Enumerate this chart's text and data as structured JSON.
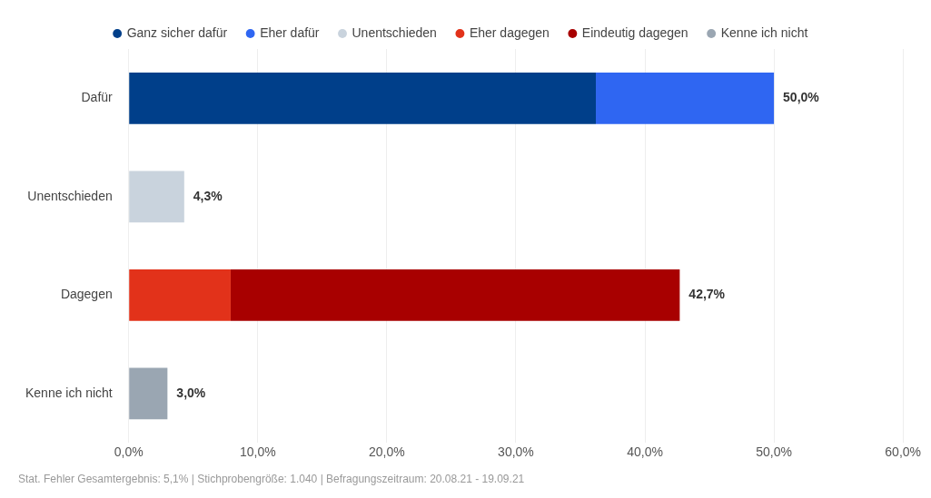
{
  "chart_data": {
    "type": "bar",
    "orientation": "horizontal",
    "stacked": true,
    "categories": [
      "Dafür",
      "Unentschieden",
      "Dagegen",
      "Kenne ich nicht"
    ],
    "series": [
      {
        "name": "Ganz sicher dafür",
        "color": "#003f8a",
        "values": [
          36.2,
          null,
          null,
          null
        ]
      },
      {
        "name": "Eher dafür",
        "color": "#2f66f2",
        "values": [
          13.8,
          null,
          null,
          null
        ]
      },
      {
        "name": "Unentschieden",
        "color": "#c9d3dd",
        "values": [
          null,
          4.3,
          null,
          null
        ]
      },
      {
        "name": "Eher dagegen",
        "color": "#e2321a",
        "values": [
          null,
          null,
          7.9,
          null
        ]
      },
      {
        "name": "Eindeutig dagegen",
        "color": "#a80000",
        "values": [
          null,
          null,
          34.8,
          null
        ]
      },
      {
        "name": "Kenne ich nicht",
        "color": "#9aa6b2",
        "values": [
          null,
          null,
          null,
          3.0
        ]
      }
    ],
    "totals": [
      "50,0%",
      "4,3%",
      "42,7%",
      "3,0%"
    ],
    "xlim": [
      0,
      60
    ],
    "xticks": [
      {
        "value": 0,
        "label": "0,0%"
      },
      {
        "value": 10,
        "label": "10,0%"
      },
      {
        "value": 20,
        "label": "20,0%"
      },
      {
        "value": 30,
        "label": "30,0%"
      },
      {
        "value": 40,
        "label": "40,0%"
      },
      {
        "value": 50,
        "label": "50,0%"
      },
      {
        "value": 60,
        "label": "60,0%"
      }
    ],
    "grid": "x",
    "legend": "top",
    "annotations": [
      "Stat. Fehler Gesamtergebnis: 5,1% | Stichprobengröße: 1.040 | Befragungszeitraum: 20.08.21 - 19.09.21"
    ]
  }
}
